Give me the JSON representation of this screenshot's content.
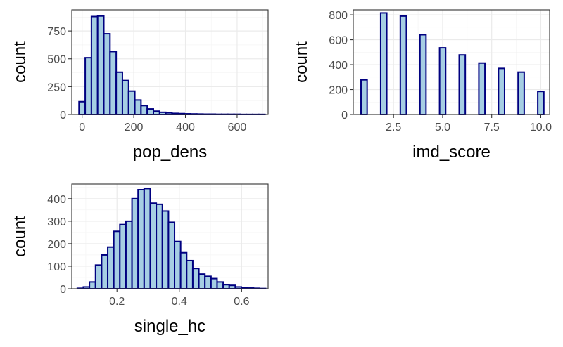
{
  "colors": {
    "bar_fill": "#a6cee3",
    "bar_stroke": "#000080",
    "grid_major": "#ebebeb",
    "grid_minor": "#f3f3f3",
    "panel_border": "#333333",
    "tick_text": "#4d4d4d"
  },
  "chart_data": [
    {
      "type": "bar",
      "panel": "pop_dens",
      "xlabel": "pop_dens",
      "ylabel": "count",
      "xlim": [
        -40,
        720
      ],
      "ylim": [
        0,
        940
      ],
      "xticks": [
        0,
        200,
        400,
        600
      ],
      "xtick_labels": [
        "0",
        "200",
        "400",
        "600"
      ],
      "yticks": [
        0,
        250,
        500,
        750
      ],
      "ytick_labels": [
        "0",
        "250",
        "500",
        "750"
      ],
      "bin_width": 24,
      "bins_center": [
        0,
        24,
        48,
        72,
        96,
        120,
        144,
        168,
        192,
        216,
        240,
        264,
        288,
        312,
        336,
        360,
        384,
        408,
        432,
        456,
        480,
        504,
        528,
        552,
        576,
        600,
        624,
        648,
        672,
        696
      ],
      "counts": [
        115,
        510,
        880,
        885,
        725,
        565,
        380,
        305,
        210,
        130,
        80,
        50,
        30,
        20,
        15,
        10,
        8,
        6,
        5,
        4,
        3,
        3,
        2,
        2,
        2,
        2,
        1,
        1,
        1,
        1
      ]
    },
    {
      "type": "bar",
      "panel": "imd_score",
      "xlabel": "imd_score",
      "ylabel": "count",
      "xlim": [
        0.45,
        10.45
      ],
      "ylim": [
        0,
        840
      ],
      "xticks": [
        2.5,
        5.0,
        7.5,
        10.0
      ],
      "xtick_labels": [
        "2.5",
        "5.0",
        "7.5",
        "10.0"
      ],
      "yticks": [
        0,
        200,
        400,
        600,
        800
      ],
      "ytick_labels": [
        "0",
        "200",
        "400",
        "600",
        "800"
      ],
      "bin_width": 0.31,
      "bins_center": [
        1,
        2,
        3,
        4,
        5,
        6,
        7,
        8,
        9,
        10
      ],
      "counts": [
        278,
        815,
        790,
        640,
        535,
        478,
        413,
        370,
        340,
        185
      ]
    },
    {
      "type": "bar",
      "panel": "single_hc",
      "xlabel": "single_hc",
      "ylabel": "count",
      "xlim": [
        0.055,
        0.685
      ],
      "ylim": [
        0,
        465
      ],
      "xticks": [
        0.2,
        0.4,
        0.6
      ],
      "xtick_labels": [
        "0.2",
        "0.4",
        "0.6"
      ],
      "yticks": [
        0,
        100,
        200,
        300,
        400
      ],
      "ytick_labels": [
        "0",
        "100",
        "200",
        "300",
        "400"
      ],
      "bin_width": 0.0195,
      "bins_center": [
        0.0825,
        0.102,
        0.1215,
        0.141,
        0.1605,
        0.18,
        0.1995,
        0.219,
        0.2385,
        0.258,
        0.2775,
        0.297,
        0.3165,
        0.336,
        0.3555,
        0.375,
        0.3945,
        0.414,
        0.4335,
        0.453,
        0.4725,
        0.492,
        0.5115,
        0.531,
        0.5505,
        0.57,
        0.5895,
        0.609,
        0.6285,
        0.648,
        0.6675
      ],
      "counts": [
        2,
        8,
        30,
        105,
        150,
        185,
        255,
        285,
        300,
        400,
        440,
        445,
        380,
        375,
        345,
        295,
        210,
        160,
        125,
        90,
        65,
        55,
        45,
        30,
        18,
        15,
        8,
        6,
        3,
        2,
        1
      ]
    }
  ]
}
